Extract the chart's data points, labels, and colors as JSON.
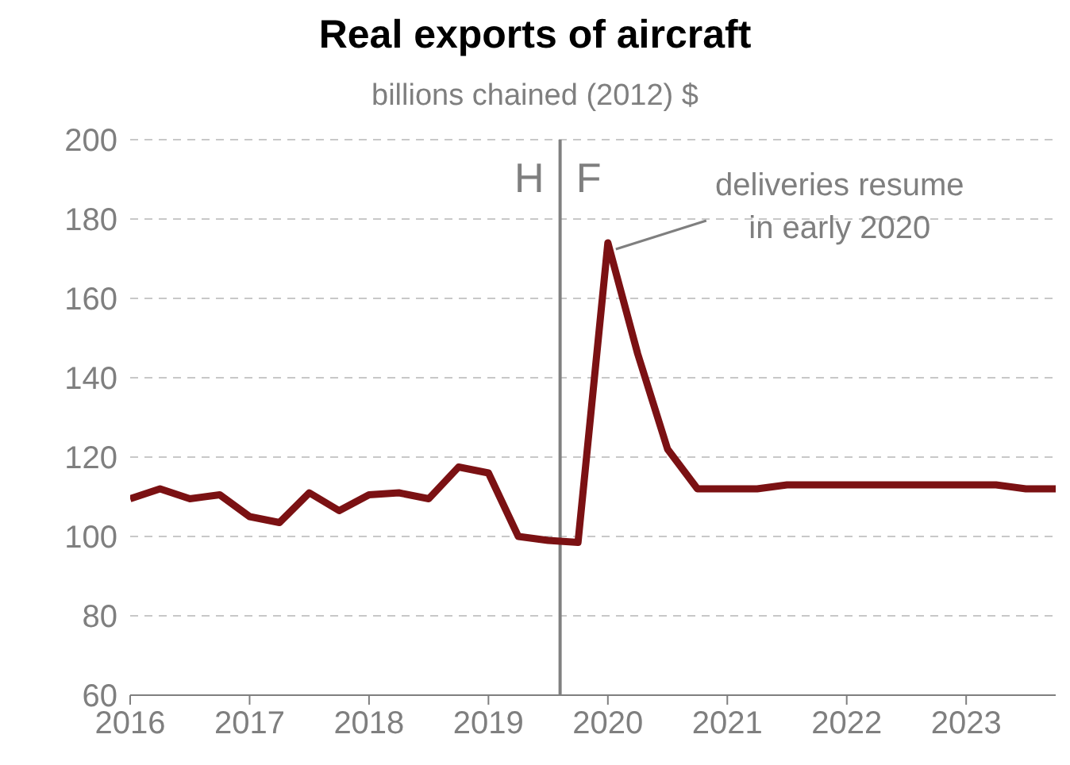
{
  "chart_data": {
    "type": "line",
    "title": "Real exports of aircraft",
    "subtitle": "billions chained (2012) $",
    "x": [
      2016,
      2016.25,
      2016.5,
      2016.75,
      2017,
      2017.25,
      2017.5,
      2017.75,
      2018,
      2018.25,
      2018.5,
      2018.75,
      2019,
      2019.25,
      2019.5,
      2019.75,
      2020,
      2020.25,
      2020.5,
      2020.75,
      2021,
      2021.25,
      2021.5,
      2021.75,
      2022,
      2022.25,
      2022.5,
      2022.75,
      2023,
      2023.25,
      2023.5,
      2023.75
    ],
    "series": [
      {
        "color": "#7b1113",
        "values": [
          109.5,
          112,
          109.5,
          110.5,
          105,
          103.5,
          111,
          106.5,
          110.5,
          111,
          109.5,
          117.5,
          116,
          100,
          99,
          98.5,
          174,
          146,
          122,
          112,
          112,
          112,
          113,
          113,
          113,
          113,
          113,
          113,
          113,
          113,
          112,
          112
        ]
      }
    ],
    "xlim": [
      2016,
      2023.75
    ],
    "xticks": [
      2016,
      2017,
      2018,
      2019,
      2020,
      2021,
      2022,
      2023
    ],
    "ylim": [
      60,
      200
    ],
    "yticks": [
      60,
      80,
      100,
      120,
      140,
      160,
      180,
      200
    ],
    "grid": "y",
    "marker": "none",
    "line_style": "solid",
    "ref_lines": [
      {
        "axis": "x",
        "value": 2019.6,
        "color": "#808080"
      }
    ],
    "annotations": [
      "H",
      "F",
      {
        "text": "deliveries resume in early 2020",
        "x": 2020,
        "y": 174
      }
    ]
  }
}
